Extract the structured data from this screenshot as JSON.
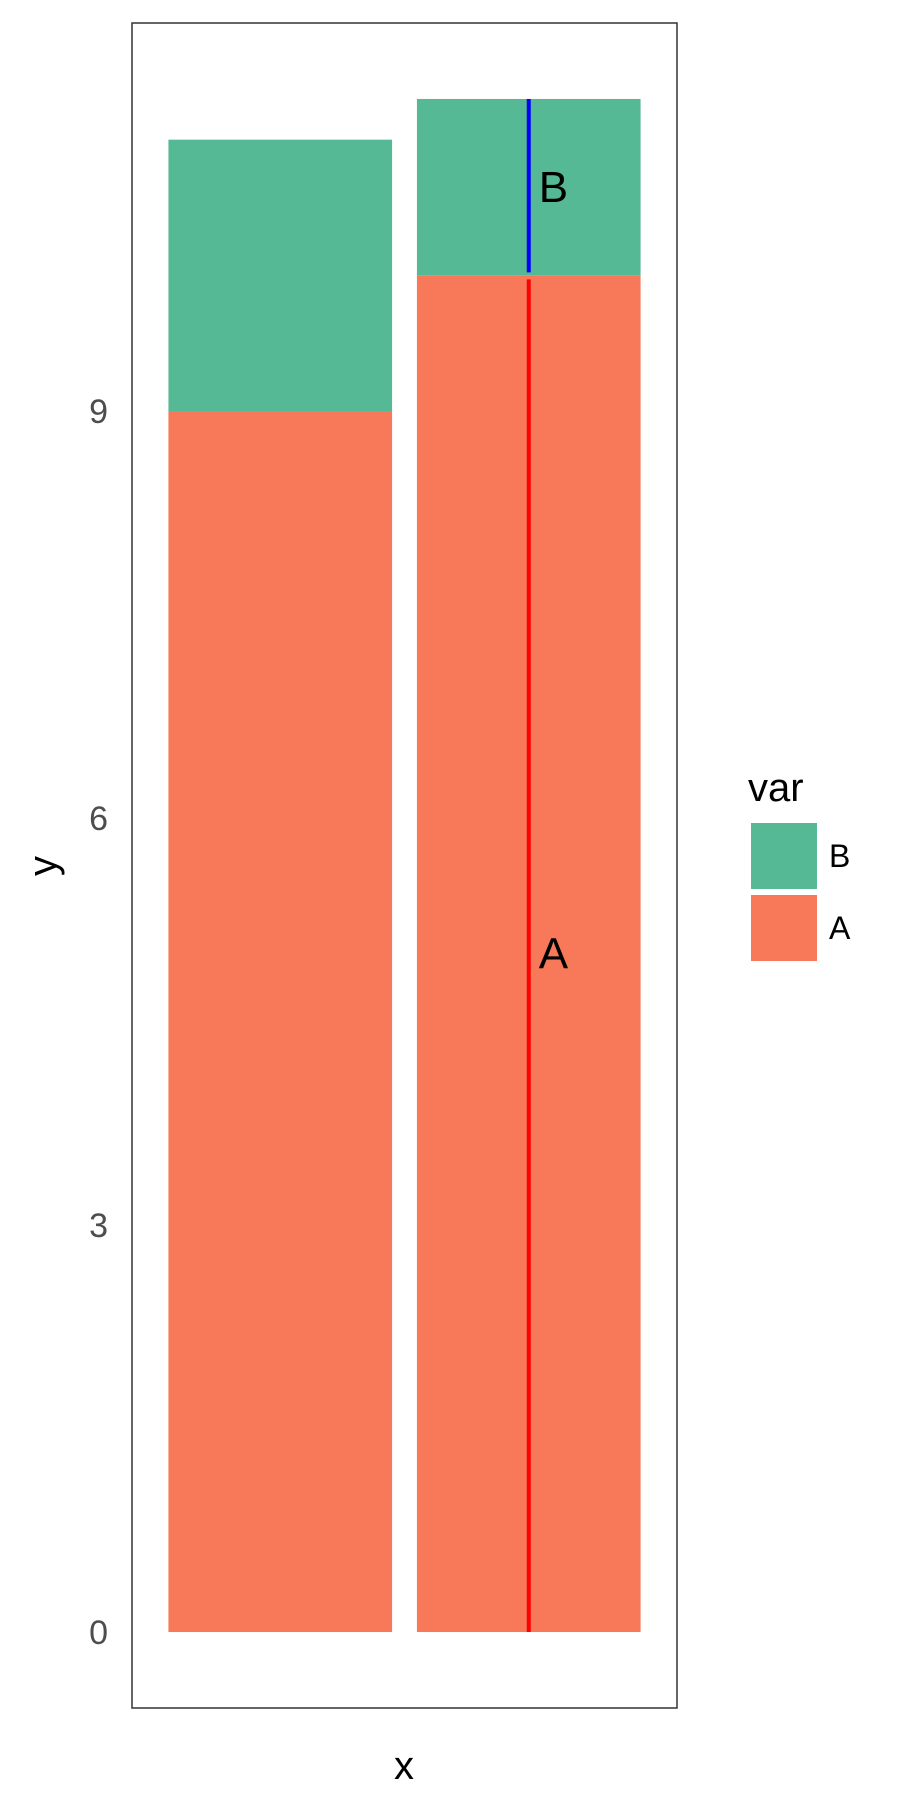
{
  "chart_data": {
    "type": "bar",
    "stacked": true,
    "categories": [
      "",
      ""
    ],
    "series": [
      {
        "name": "A",
        "values": [
          9.0,
          10.0
        ],
        "color": "#F8795A"
      },
      {
        "name": "B",
        "values": [
          2.0,
          1.3
        ],
        "color": "#56B995"
      }
    ],
    "xlabel": "x",
    "ylabel": "y",
    "ylim": [
      -0.56,
      11.86
    ],
    "yticks": [
      0,
      3,
      6,
      9
    ],
    "ytick_labels": [
      "0",
      "3",
      "6",
      "9"
    ],
    "legend": {
      "title": "var",
      "entries": [
        "B",
        "A"
      ],
      "placement": "right"
    },
    "grid": false,
    "annotations": [
      {
        "text": "B",
        "category_index": 1,
        "y": 10.65
      },
      {
        "text": "A",
        "category_index": 1,
        "y": 5.0
      }
    ],
    "segment_lines": [
      {
        "category_index": 1,
        "y0": 0,
        "y1": 10.0,
        "color": "#FF0000"
      },
      {
        "category_index": 1,
        "y0": 10.0,
        "y1": 11.3,
        "color": "#0000FF"
      }
    ]
  }
}
